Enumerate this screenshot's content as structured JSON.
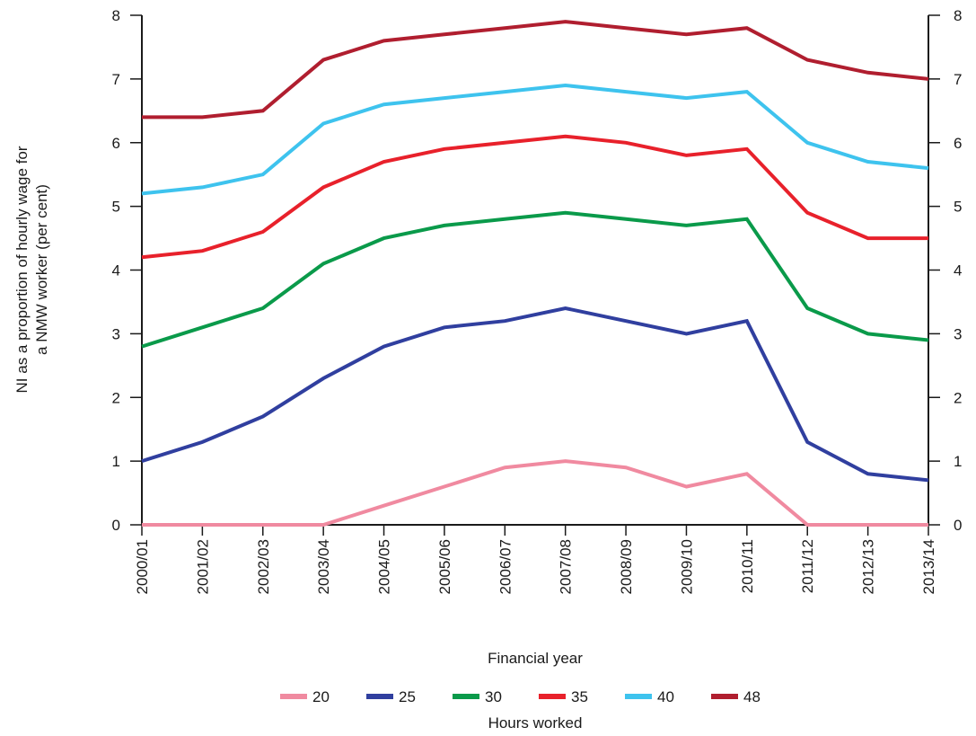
{
  "chart_data": {
    "type": "line",
    "xlabel": "Financial year",
    "ylabel_lines": [
      "NI as a proportion of hourly wage for",
      "a NMW worker (per cent)"
    ],
    "legend_title": "Hours worked",
    "legend_position": "bottom-center",
    "grid": false,
    "ylim": [
      0,
      8
    ],
    "yticks": [
      "0",
      "1",
      "2",
      "3",
      "4",
      "5",
      "6",
      "7",
      "8"
    ],
    "categories": [
      "2000/01",
      "2001/02",
      "2002/03",
      "2003/04",
      "2004/05",
      "2005/06",
      "2006/07",
      "2007/08",
      "2008/09",
      "2009/10",
      "2010/11",
      "2011/12",
      "2012/13",
      "2013/14"
    ],
    "series": [
      {
        "name": "20",
        "color": "#f08aa0",
        "values": [
          0,
          0,
          0,
          0,
          0.3,
          0.6,
          0.9,
          1.0,
          0.9,
          0.6,
          0.8,
          0,
          0,
          0
        ]
      },
      {
        "name": "25",
        "color": "#303f9f",
        "values": [
          1.0,
          1.3,
          1.7,
          2.3,
          2.8,
          3.1,
          3.2,
          3.4,
          3.2,
          3.0,
          3.2,
          1.3,
          0.8,
          0.7
        ]
      },
      {
        "name": "30",
        "color": "#0a9a4a",
        "values": [
          2.8,
          3.1,
          3.4,
          4.1,
          4.5,
          4.7,
          4.8,
          4.9,
          4.8,
          4.7,
          4.8,
          3.4,
          3.0,
          2.9
        ]
      },
      {
        "name": "35",
        "color": "#e8212b",
        "values": [
          4.2,
          4.3,
          4.6,
          5.3,
          5.7,
          5.9,
          6.0,
          6.1,
          6.0,
          5.8,
          5.9,
          4.9,
          4.5,
          4.5
        ]
      },
      {
        "name": "40",
        "color": "#3ec3ee",
        "values": [
          5.2,
          5.3,
          5.5,
          6.3,
          6.6,
          6.7,
          6.8,
          6.9,
          6.8,
          6.7,
          6.8,
          6.0,
          5.7,
          5.6
        ]
      },
      {
        "name": "48",
        "color": "#b01e2f",
        "values": [
          6.4,
          6.4,
          6.5,
          7.3,
          7.6,
          7.7,
          7.8,
          7.9,
          7.8,
          7.7,
          7.8,
          7.3,
          7.1,
          7.0
        ]
      }
    ]
  }
}
